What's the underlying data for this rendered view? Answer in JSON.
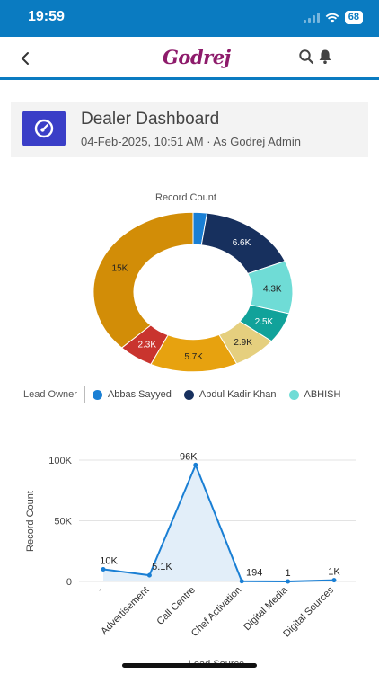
{
  "status_bar": {
    "time": "19:59",
    "battery": "68"
  },
  "header": {
    "logo": "Godrej",
    "back_icon": "chevron-left-icon",
    "search_icon": "search-icon",
    "bell_icon": "bell-icon"
  },
  "dashboard": {
    "title": "Dealer Dashboard",
    "subtitle": "04-Feb-2025, 10:51 AM  ·  As Godrej Admin",
    "icon": "gauge-icon",
    "accent": "#3a3ec7"
  },
  "donut": {
    "title": "Record Count",
    "legend_label": "Lead Owner",
    "legend_items": [
      {
        "label": "Abbas Sayyed",
        "color": "#1a7fd4"
      },
      {
        "label": "Abdul Kadir Khan",
        "color": "#17305e"
      },
      {
        "label": "ABHISH",
        "color": "#6fdcd6"
      }
    ]
  },
  "line": {
    "ylabel": "Record Count",
    "xlabel": "Lead Source"
  },
  "chart_data": [
    {
      "type": "pie",
      "title": "Record Count",
      "legend_title": "Lead Owner",
      "slices": [
        {
          "label": "Abbas Sayyed",
          "value": 0.9,
          "display": "",
          "color": "#1a7fd4"
        },
        {
          "label": "Abdul Kadir Khan",
          "value": 6.6,
          "display": "6.6K",
          "color": "#17305e"
        },
        {
          "label": "ABHISH",
          "value": 4.3,
          "display": "4.3K",
          "color": "#6fdcd6"
        },
        {
          "label": "",
          "value": 2.5,
          "display": "2.5K",
          "color": "#11a29a"
        },
        {
          "label": "",
          "value": 2.9,
          "display": "2.9K",
          "color": "#e5cf7e"
        },
        {
          "label": "",
          "value": 5.7,
          "display": "5.7K",
          "color": "#e7a20f"
        },
        {
          "label": "",
          "value": 2.3,
          "display": "2.3K",
          "color": "#c9342e"
        },
        {
          "label": "",
          "value": 15,
          "display": "15K",
          "color": "#d28d07"
        }
      ]
    },
    {
      "type": "area",
      "xlabel": "Lead Source",
      "ylabel": "Record Count",
      "ylim": [
        0,
        100000
      ],
      "yticks": [
        {
          "value": 0,
          "label": "0"
        },
        {
          "value": 50000,
          "label": "50K"
        },
        {
          "value": 100000,
          "label": "100K"
        }
      ],
      "categories": [
        "-",
        "Advertisement",
        "Call Centre",
        "Chef Activation",
        "Digital Media",
        "Digital Sources"
      ],
      "values": [
        10000,
        5100,
        96000,
        194,
        1,
        1000
      ],
      "data_labels": [
        "10K",
        "5.1K",
        "96K",
        "194",
        "1",
        "1K"
      ],
      "line_color": "#1a7fd4",
      "fill_color": "#e2eef9"
    }
  ]
}
